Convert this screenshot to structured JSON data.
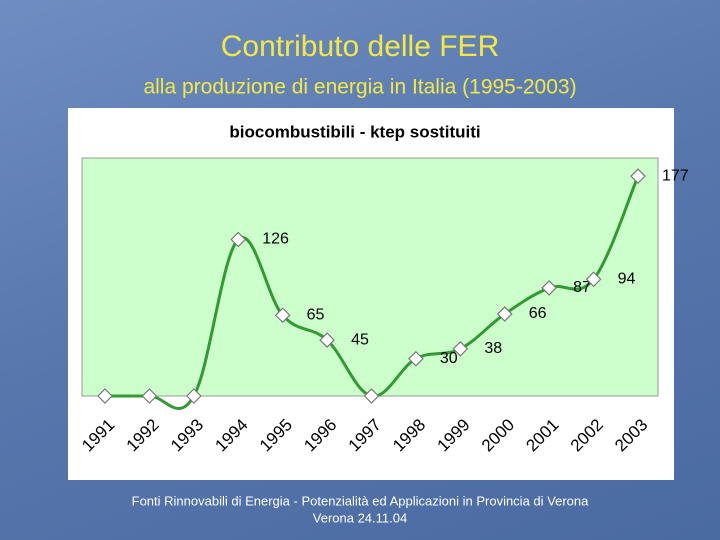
{
  "header": {
    "title": "Contributo delle FER",
    "subtitle": "alla produzione di energia in Italia (1995-2003)"
  },
  "chart_data": {
    "type": "line",
    "title": "biocombustibili - ktep sostituiti",
    "categories": [
      "1991",
      "1992",
      "1993",
      "1994",
      "1995",
      "1996",
      "1997",
      "1998",
      "1999",
      "2000",
      "2001",
      "2002",
      "2003"
    ],
    "series": [
      {
        "name": "biocombustibili",
        "color": "#339933",
        "values": [
          0,
          0,
          0,
          126,
          65,
          45,
          0,
          30,
          38,
          66,
          87,
          94,
          177
        ]
      }
    ],
    "ylim": [
      0,
      190
    ],
    "grid": false
  },
  "footer": {
    "line1": "Fonti Rinnovabili di Energia - Potenzialità ed Applicazioni in Provincia di Verona",
    "line2": "Verona 24.11.04"
  }
}
